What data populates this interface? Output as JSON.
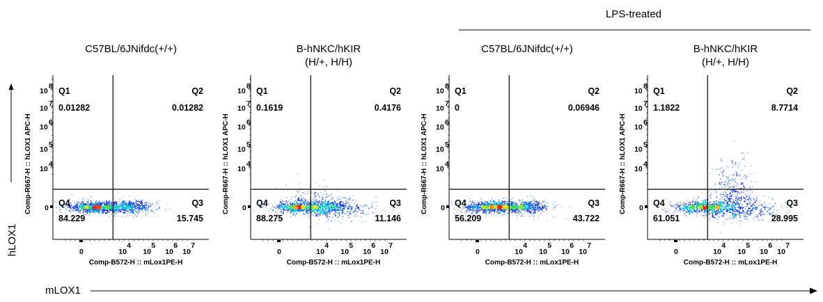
{
  "header": {
    "group_label": "LPS-treated"
  },
  "axes": {
    "left_label": "hLOX1",
    "bottom_label": "mLOX1"
  },
  "chart_data": [
    {
      "type": "scatter",
      "title_line1": "C57BL/6JNifdc(+/+)",
      "title_line2": "",
      "xlabel": "Comp-B572-H :: mLox1PE-H",
      "ylabel": "Comp-R667-H :: hLOX1 APC-H",
      "quadrants": {
        "Q1": "0.01282",
        "Q2": "0.01282",
        "Q3": "15.745",
        "Q4": "84.229"
      },
      "cluster": "low-double-lobe"
    },
    {
      "type": "scatter",
      "title_line1": "B-hNKC/hKIR",
      "title_line2": "(H/+, H/H)",
      "xlabel": "Comp-B572-H :: mLox1PE-H",
      "ylabel": "Comp-R667-H :: hLOX1 APC-H",
      "quadrants": {
        "Q1": "0.1619",
        "Q2": "0.4176",
        "Q3": "11.146",
        "Q4": "88.275"
      },
      "cluster": "low-spread"
    },
    {
      "type": "scatter",
      "title_line1": "C57BL/6JNifdc(+/+)",
      "title_line2": "",
      "xlabel": "Comp-B572-H :: mLox1PE-H",
      "ylabel": "Comp-R667-H :: hLOX1 APC-H",
      "quadrants": {
        "Q1": "0",
        "Q2": "0.06946",
        "Q3": "43.722",
        "Q4": "56.209"
      },
      "cluster": "low-double-lobe"
    },
    {
      "type": "scatter",
      "title_line1": "B-hNKC/hKIR",
      "title_line2": "(H/+, H/H)",
      "xlabel": "Comp-B572-H :: mLox1PE-H",
      "ylabel": "Comp-R667-H :: hLOX1 APC-H",
      "quadrants": {
        "Q1": "1.1822",
        "Q2": "8.7714",
        "Q3": "28.995",
        "Q4": "61.051"
      },
      "cluster": "high-plume"
    }
  ]
}
